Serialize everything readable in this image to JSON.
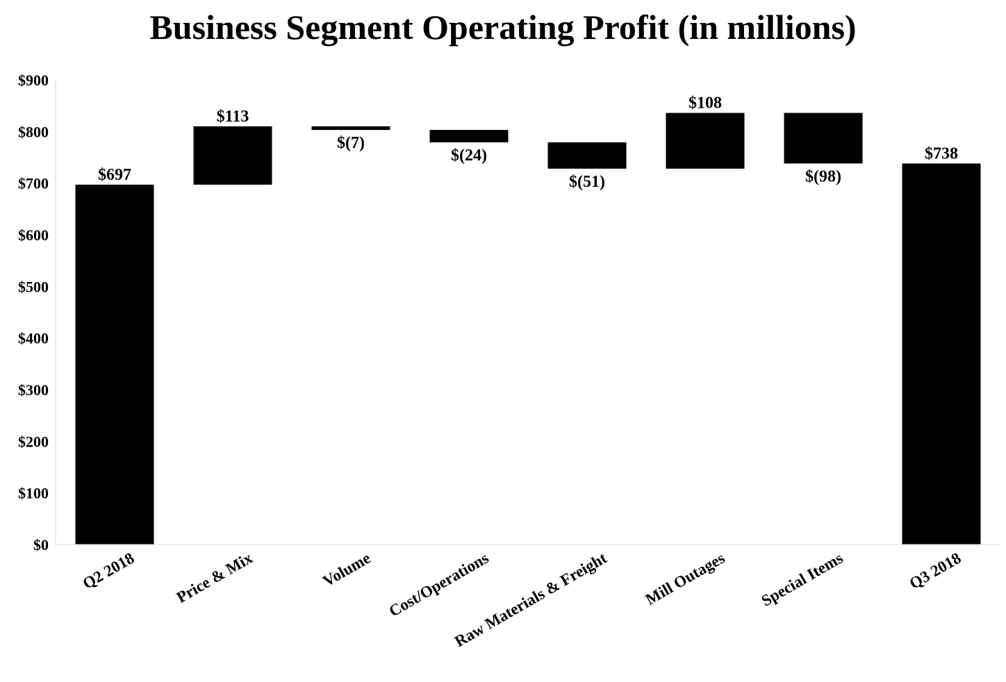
{
  "chart_data": {
    "type": "waterfall",
    "title": "Business Segment Operating Profit (in millions)",
    "categories": [
      "Q2 2018",
      "Price & Mix",
      "Volume",
      "Cost/Operations",
      "Raw Materials & Freight",
      "Mill Outages",
      "Special Items",
      "Q3 2018"
    ],
    "values": [
      697,
      113,
      -7,
      -24,
      -51,
      108,
      -98,
      738
    ],
    "kinds": [
      "total",
      "delta",
      "delta",
      "delta",
      "delta",
      "delta",
      "delta",
      "total"
    ],
    "data_labels": [
      "$697",
      "$113",
      "$(7)",
      "$(24)",
      "$(51)",
      "$108",
      "$(98)",
      "$738"
    ],
    "ylim": [
      0,
      900
    ],
    "yticks": [
      0,
      100,
      200,
      300,
      400,
      500,
      600,
      700,
      800,
      900
    ],
    "ytick_labels": [
      "$0",
      "$100",
      "$200",
      "$300",
      "$400",
      "$500",
      "$600",
      "$700",
      "$800",
      "$900"
    ],
    "xlabel": "",
    "ylabel": "",
    "bar_color": "#000000",
    "axis_color": "#d9d9d9",
    "grid": false
  }
}
